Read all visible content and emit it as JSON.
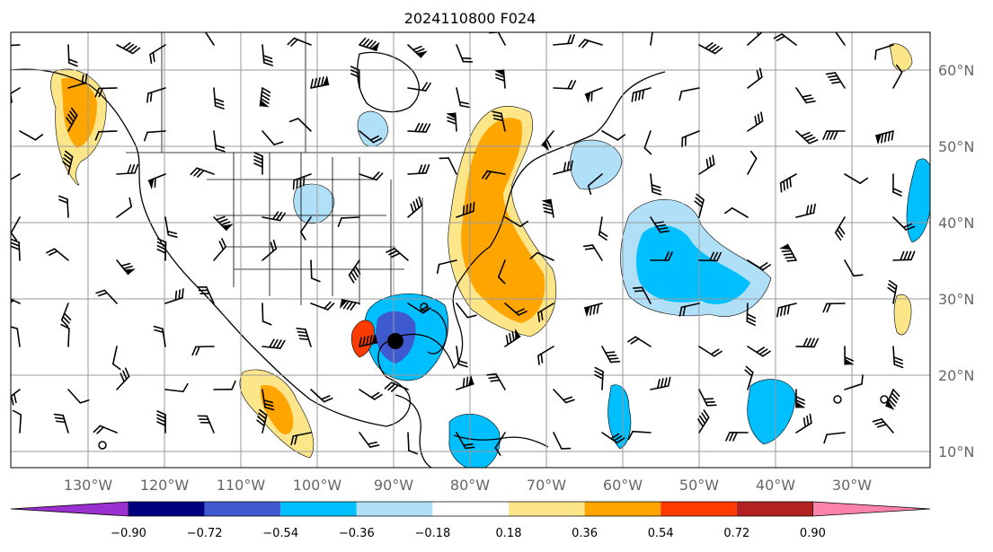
{
  "title": "2024110800 F024",
  "longitude_labels": [
    "130°W",
    "120°W",
    "110°W",
    "100°W",
    "90°W",
    "80°W",
    "70°W",
    "60°W",
    "50°W",
    "40°W",
    "30°W"
  ],
  "latitude_labels": [
    "60°N",
    "50°N",
    "40°N",
    "30°N",
    "20°N",
    "10°N"
  ],
  "colorbar": {
    "tick_labels": [
      "−0.90",
      "−0.72",
      "−0.54",
      "−0.36",
      "−0.18",
      "0.18",
      "0.36",
      "0.54",
      "0.72",
      "0.90"
    ],
    "colors": {
      "under": "#9b30d0",
      "bins": [
        "#00007f",
        "#3f5acf",
        "#00bfff",
        "#b0e0f8",
        "#ffffff",
        "#fde68a",
        "#ffa500",
        "#ff3b00",
        "#b22222"
      ],
      "over": "#ff82ab"
    }
  },
  "features": {
    "storm_center_lat": 24.5,
    "storm_center_lon": -89.0
  },
  "colors": {
    "gridline": "#9a9a9a",
    "coastline": "#000000",
    "tick_text": "#666666"
  }
}
